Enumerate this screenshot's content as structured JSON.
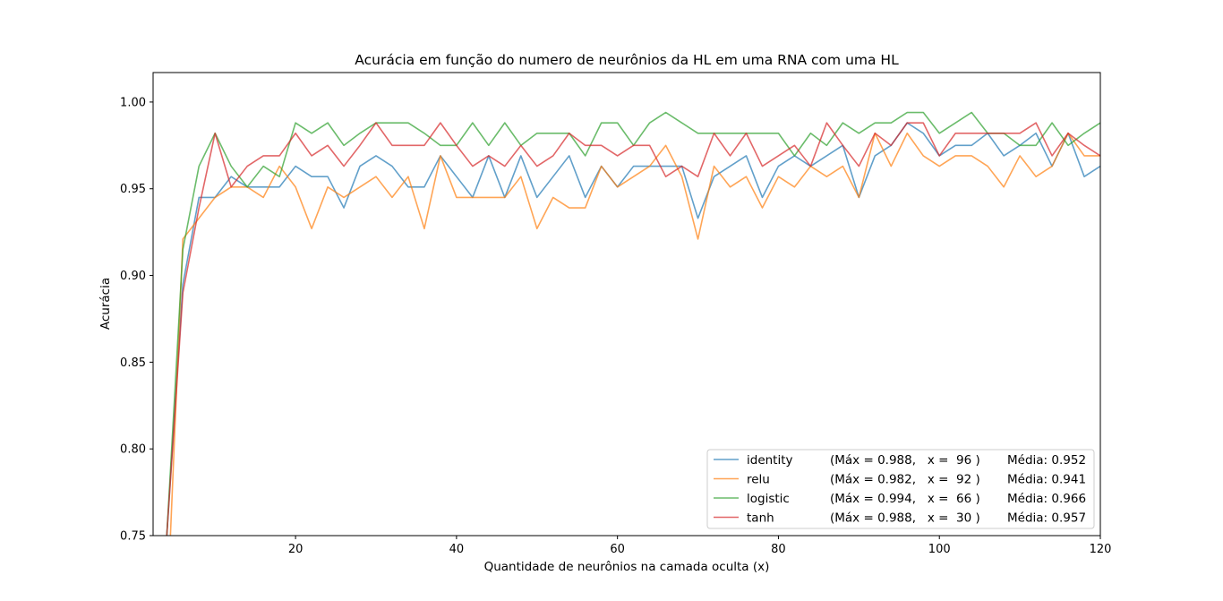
{
  "chart_data": {
    "type": "line",
    "title": "Acurácia em função do numero de neurônios da HL em uma RNA com uma HL",
    "xlabel": "Quantidade de neurônios na camada oculta (x)",
    "ylabel": "Acurácia",
    "xlim": [
      2.3,
      120
    ],
    "ylim": [
      0.75,
      1.017
    ],
    "xticks": [
      20,
      40,
      60,
      80,
      100,
      120
    ],
    "yticks": [
      0.75,
      0.8,
      0.85,
      0.9,
      0.95,
      1.0
    ],
    "xtick_labels": [
      "20",
      "40",
      "60",
      "80",
      "100",
      "120"
    ],
    "ytick_labels": [
      "0.75",
      "0.80",
      "0.85",
      "0.90",
      "0.95",
      "1.00"
    ],
    "grid": false,
    "legend_position": "lower-right",
    "x": [
      4,
      6,
      8,
      10,
      12,
      14,
      16,
      18,
      20,
      22,
      24,
      26,
      28,
      30,
      32,
      34,
      36,
      38,
      40,
      42,
      44,
      46,
      48,
      50,
      52,
      54,
      56,
      58,
      60,
      62,
      64,
      66,
      68,
      70,
      72,
      74,
      76,
      78,
      80,
      82,
      84,
      86,
      88,
      90,
      92,
      94,
      96,
      98,
      100,
      102,
      104,
      106,
      108,
      110,
      112,
      114,
      116,
      118,
      120
    ],
    "series": [
      {
        "name": "identity",
        "color": "#1f77b4",
        "legend_stats": "(Máx = 0.988,   x =  96 )",
        "legend_mean": "Média: 0.952",
        "values": [
          0.75,
          0.895,
          0.945,
          0.945,
          0.957,
          0.951,
          0.951,
          0.951,
          0.963,
          0.957,
          0.957,
          0.939,
          0.963,
          0.969,
          0.963,
          0.951,
          0.951,
          0.969,
          0.957,
          0.945,
          0.969,
          0.945,
          0.969,
          0.945,
          0.957,
          0.969,
          0.945,
          0.963,
          0.951,
          0.963,
          0.963,
          0.963,
          0.963,
          0.933,
          0.957,
          0.963,
          0.969,
          0.945,
          0.963,
          0.969,
          0.963,
          0.969,
          0.975,
          0.945,
          0.969,
          0.975,
          0.988,
          0.982,
          0.969,
          0.975,
          0.975,
          0.982,
          0.969,
          0.975,
          0.982,
          0.963,
          0.982,
          0.957,
          0.963
        ]
      },
      {
        "name": "relu",
        "color": "#ff7f0e",
        "legend_stats": "(Máx = 0.982,   x =  92 )",
        "legend_mean": "Média: 0.941",
        "values": [
          0.7,
          0.921,
          0.933,
          0.945,
          0.951,
          0.951,
          0.945,
          0.963,
          0.951,
          0.927,
          0.951,
          0.945,
          0.951,
          0.957,
          0.945,
          0.957,
          0.927,
          0.969,
          0.945,
          0.945,
          0.945,
          0.945,
          0.957,
          0.927,
          0.945,
          0.939,
          0.939,
          0.963,
          0.951,
          0.957,
          0.963,
          0.975,
          0.957,
          0.921,
          0.963,
          0.951,
          0.957,
          0.939,
          0.957,
          0.951,
          0.963,
          0.957,
          0.963,
          0.945,
          0.982,
          0.963,
          0.982,
          0.969,
          0.963,
          0.969,
          0.969,
          0.963,
          0.951,
          0.969,
          0.957,
          0.963,
          0.982,
          0.969,
          0.969
        ]
      },
      {
        "name": "logistic",
        "color": "#2ca02c",
        "legend_stats": "(Máx = 0.994,   x =  66 )",
        "legend_mean": "Média: 0.966",
        "values": [
          0.75,
          0.915,
          0.963,
          0.982,
          0.963,
          0.951,
          0.963,
          0.957,
          0.988,
          0.982,
          0.988,
          0.975,
          0.982,
          0.988,
          0.988,
          0.988,
          0.982,
          0.975,
          0.975,
          0.988,
          0.975,
          0.988,
          0.975,
          0.982,
          0.982,
          0.982,
          0.969,
          0.988,
          0.988,
          0.975,
          0.988,
          0.994,
          0.988,
          0.982,
          0.982,
          0.982,
          0.982,
          0.982,
          0.982,
          0.969,
          0.982,
          0.975,
          0.988,
          0.982,
          0.988,
          0.988,
          0.994,
          0.994,
          0.982,
          0.988,
          0.994,
          0.982,
          0.982,
          0.975,
          0.975,
          0.988,
          0.975,
          0.982,
          0.988
        ]
      },
      {
        "name": "tanh",
        "color": "#d62728",
        "legend_stats": "(Máx = 0.988,   x =  30 )",
        "legend_mean": "Média: 0.957",
        "values": [
          0.75,
          0.89,
          0.939,
          0.982,
          0.951,
          0.963,
          0.969,
          0.969,
          0.982,
          0.969,
          0.975,
          0.963,
          0.975,
          0.988,
          0.975,
          0.975,
          0.975,
          0.988,
          0.975,
          0.963,
          0.969,
          0.963,
          0.975,
          0.963,
          0.969,
          0.982,
          0.975,
          0.975,
          0.969,
          0.975,
          0.975,
          0.957,
          0.963,
          0.957,
          0.982,
          0.969,
          0.982,
          0.963,
          0.969,
          0.975,
          0.963,
          0.988,
          0.975,
          0.963,
          0.982,
          0.975,
          0.988,
          0.988,
          0.969,
          0.982,
          0.982,
          0.982,
          0.982,
          0.982,
          0.988,
          0.969,
          0.982,
          0.975,
          0.969
        ]
      }
    ]
  }
}
